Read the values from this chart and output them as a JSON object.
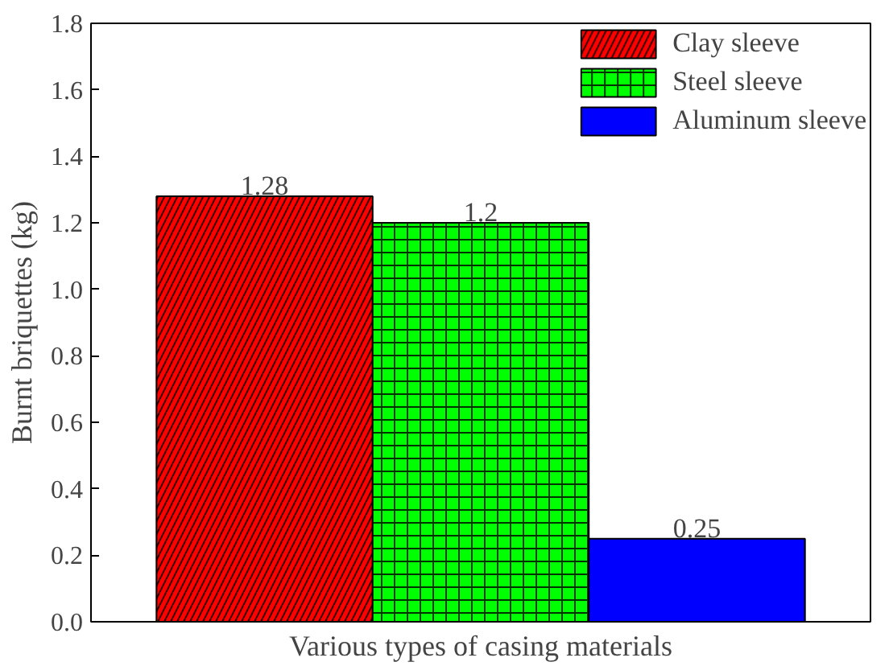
{
  "chart_data": {
    "type": "bar",
    "xlabel": "Various types of casing materials",
    "ylabel": "Burnt briquettes (kg)",
    "categories": [
      null
    ],
    "series": [
      {
        "name": "Clay sleeve",
        "color": "#ff0000",
        "values": [
          1.28
        ]
      },
      {
        "name": "Steel sleeve",
        "color": "#00ff00",
        "values": [
          1.2
        ]
      },
      {
        "name": "Aluminum sleeve",
        "color": "#0000ff",
        "values": [
          0.25
        ]
      }
    ],
    "ylim": [
      0,
      1.8
    ],
    "yticks": [
      {
        "value": 0,
        "label": "0.0"
      },
      0.2,
      0.4,
      0.6,
      0.8,
      {
        "value": 1,
        "label": "1.0"
      },
      1.2,
      1.4,
      1.6,
      1.8
    ],
    "data_labels": true,
    "legend": "top right",
    "grid": false,
    "tick_labels": "y"
  }
}
